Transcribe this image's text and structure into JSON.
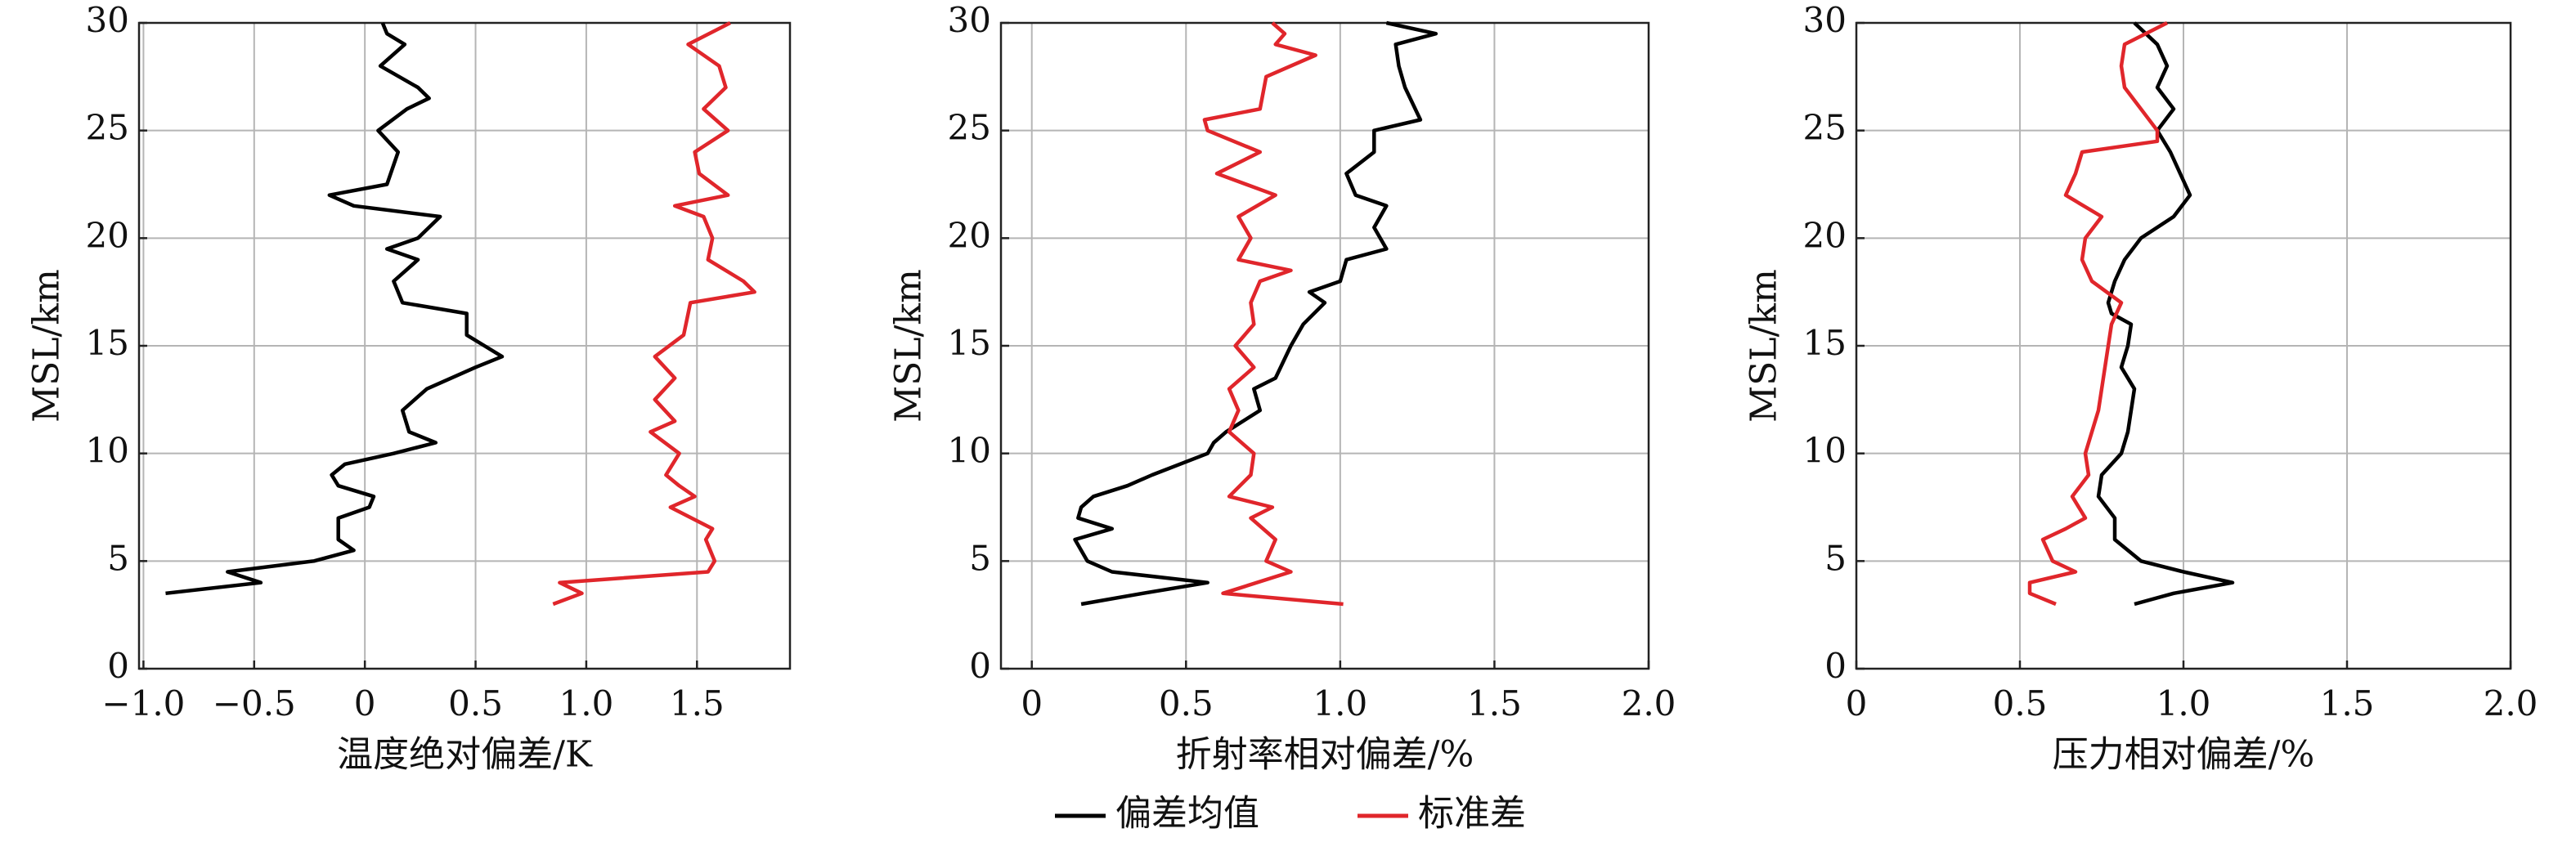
{
  "chart_data": [
    {
      "type": "line",
      "x_label": "温度绝对偏差/K",
      "y_label": "MSL/km",
      "xlim": [
        -1.02,
        1.92
      ],
      "xticks": [
        {
          "value": -1.0,
          "label": "−1.0"
        },
        {
          "value": -0.5,
          "label": "−0.5"
        },
        0,
        0.5,
        {
          "value": 1.0,
          "label": "1.0"
        },
        1.5
      ],
      "ylim": [
        0,
        30
      ],
      "yticks": [
        0,
        5,
        10,
        15,
        20,
        25,
        30
      ],
      "grid": true,
      "series": [
        {
          "altitudes": [
            3.5,
            4,
            4.5,
            5,
            5.5,
            6,
            7,
            7.5,
            8,
            8.5,
            9,
            9.5,
            10,
            10.5,
            11,
            12,
            13,
            14,
            14.5,
            15,
            15.5,
            16.5,
            17,
            18,
            19,
            19.5,
            20,
            21,
            21.5,
            22,
            22.5,
            24,
            25,
            26,
            26.5,
            27,
            28,
            29,
            29.5,
            30
          ],
          "values": [
            -0.9,
            -0.47,
            -0.62,
            -0.23,
            -0.05,
            -0.12,
            -0.12,
            0.02,
            0.04,
            -0.12,
            -0.15,
            -0.09,
            0.13,
            0.32,
            0.2,
            0.17,
            0.28,
            0.5,
            0.62,
            0.54,
            0.46,
            0.46,
            0.17,
            0.13,
            0.24,
            0.1,
            0.24,
            0.34,
            -0.05,
            -0.16,
            0.1,
            0.15,
            0.06,
            0.19,
            0.29,
            0.24,
            0.07,
            0.18,
            0.1,
            0.08
          ]
        },
        {
          "altitudes": [
            3,
            3.5,
            4,
            4.5,
            5,
            6,
            6.5,
            7.5,
            8,
            8.5,
            9,
            10,
            11,
            11.5,
            12.5,
            13.5,
            14.5,
            15.5,
            16.5,
            17,
            17.5,
            18,
            19,
            20,
            21,
            21.5,
            22,
            23,
            24,
            25,
            26,
            27,
            28,
            29,
            30
          ],
          "values": [
            0.85,
            0.98,
            0.88,
            1.55,
            1.58,
            1.54,
            1.57,
            1.38,
            1.49,
            1.42,
            1.36,
            1.42,
            1.29,
            1.4,
            1.31,
            1.4,
            1.31,
            1.44,
            1.46,
            1.47,
            1.76,
            1.71,
            1.55,
            1.57,
            1.53,
            1.4,
            1.64,
            1.51,
            1.49,
            1.64,
            1.53,
            1.63,
            1.6,
            1.46,
            1.65
          ]
        }
      ]
    },
    {
      "type": "line",
      "x_label": "折射率相对偏差/%",
      "y_label": "MSL/km",
      "xlim": [
        -0.1,
        2.0
      ],
      "xticks": [
        0,
        0.5,
        {
          "value": 1.0,
          "label": "1.0"
        },
        1.5,
        {
          "value": 2.0,
          "label": "2.0"
        }
      ],
      "ylim": [
        0,
        30
      ],
      "yticks": [
        0,
        5,
        10,
        15,
        20,
        25,
        30
      ],
      "grid": true,
      "series": [
        {
          "altitudes": [
            3,
            3.5,
            4,
            4.5,
            5,
            6,
            6.5,
            7,
            7.5,
            8,
            8.5,
            9,
            10,
            10.5,
            11,
            12,
            13,
            13.5,
            15,
            16,
            17,
            17.5,
            18,
            19,
            19.5,
            20.5,
            21.5,
            22,
            23,
            24,
            25,
            25.5,
            27,
            28,
            29,
            29.5,
            30
          ],
          "values": [
            0.16,
            0.36,
            0.57,
            0.26,
            0.18,
            0.14,
            0.26,
            0.15,
            0.16,
            0.2,
            0.31,
            0.39,
            0.57,
            0.59,
            0.63,
            0.74,
            0.72,
            0.79,
            0.84,
            0.88,
            0.95,
            0.9,
            1.0,
            1.02,
            1.15,
            1.11,
            1.15,
            1.05,
            1.02,
            1.11,
            1.11,
            1.26,
            1.21,
            1.19,
            1.18,
            1.31,
            1.15
          ]
        },
        {
          "altitudes": [
            3,
            3.5,
            4.5,
            5,
            6,
            7,
            7.5,
            8,
            9,
            10,
            11,
            12,
            13,
            14,
            15,
            16,
            17,
            18,
            18.5,
            19,
            20,
            21,
            22,
            23,
            24,
            25,
            25.5,
            26,
            27.5,
            28.5,
            29,
            29.5,
            30
          ],
          "values": [
            1.01,
            0.62,
            0.84,
            0.76,
            0.79,
            0.71,
            0.78,
            0.64,
            0.71,
            0.72,
            0.64,
            0.67,
            0.64,
            0.72,
            0.66,
            0.72,
            0.71,
            0.74,
            0.84,
            0.67,
            0.71,
            0.67,
            0.79,
            0.6,
            0.74,
            0.57,
            0.56,
            0.74,
            0.76,
            0.92,
            0.79,
            0.82,
            0.78
          ]
        }
      ]
    },
    {
      "type": "line",
      "x_label": "压力相对偏差/%",
      "y_label": "MSL/km",
      "xlim": [
        0,
        2.0
      ],
      "xticks": [
        0,
        0.5,
        {
          "value": 1.0,
          "label": "1.0"
        },
        1.5,
        {
          "value": 2.0,
          "label": "2.0"
        }
      ],
      "ylim": [
        0,
        30
      ],
      "yticks": [
        0,
        5,
        10,
        15,
        20,
        25,
        30
      ],
      "grid": true,
      "series": [
        {
          "altitudes": [
            3,
            3.5,
            4,
            4.5,
            5,
            6,
            7,
            8,
            9,
            10,
            11,
            12,
            13,
            14,
            15,
            16,
            16.5,
            17,
            18,
            19,
            20,
            21,
            22,
            23,
            24,
            25,
            26,
            27,
            28,
            29,
            30
          ],
          "values": [
            0.85,
            0.97,
            1.15,
            1.0,
            0.87,
            0.79,
            0.79,
            0.74,
            0.75,
            0.81,
            0.83,
            0.84,
            0.85,
            0.81,
            0.83,
            0.84,
            0.78,
            0.77,
            0.79,
            0.82,
            0.87,
            0.97,
            1.02,
            0.99,
            0.96,
            0.92,
            0.97,
            0.92,
            0.95,
            0.92,
            0.85
          ]
        },
        {
          "altitudes": [
            3,
            3.5,
            4,
            4.5,
            5,
            6,
            6.5,
            7,
            8,
            9,
            10,
            11,
            12,
            13,
            14,
            15,
            16,
            17,
            18,
            19,
            20,
            21,
            22,
            23,
            24,
            24.5,
            25,
            26,
            27,
            28,
            29,
            30
          ],
          "values": [
            0.61,
            0.53,
            0.53,
            0.67,
            0.6,
            0.57,
            0.64,
            0.7,
            0.66,
            0.71,
            0.7,
            0.72,
            0.74,
            0.75,
            0.76,
            0.77,
            0.78,
            0.81,
            0.72,
            0.69,
            0.7,
            0.75,
            0.64,
            0.67,
            0.69,
            0.92,
            0.92,
            0.87,
            0.82,
            0.81,
            0.82,
            0.95
          ]
        }
      ]
    }
  ],
  "legend": [
    {
      "name": "偏差均值",
      "color": "#000000"
    },
    {
      "name": "标准差",
      "color": "#e0262b"
    }
  ]
}
